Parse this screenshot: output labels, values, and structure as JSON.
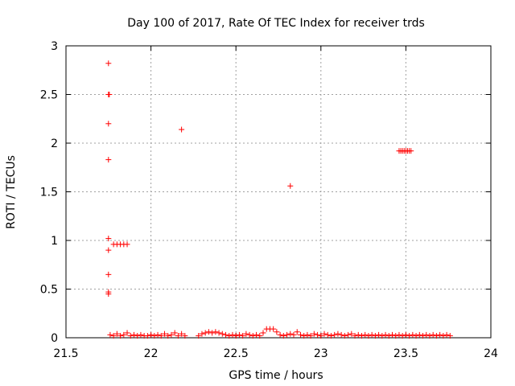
{
  "chart_data": {
    "type": "scatter",
    "title": "Day 100 of 2017, Rate Of TEC Index for receiver trds",
    "xlabel": "GPS time / hours",
    "ylabel": "ROTI / TECUs",
    "xlim": [
      21.5,
      24
    ],
    "ylim": [
      0,
      3
    ],
    "xticks": [
      "21.5",
      "22",
      "22.5",
      "23",
      "23.5",
      "24"
    ],
    "yticks": [
      "0",
      "0.5",
      "1",
      "1.5",
      "2",
      "2.5",
      "3"
    ],
    "grid": true,
    "marker": "+",
    "color": "#ff0000",
    "series": [
      {
        "points": [
          [
            21.75,
            2.82
          ],
          [
            21.75,
            2.5
          ],
          [
            21.755,
            2.5
          ],
          [
            21.75,
            2.2
          ],
          [
            21.75,
            1.83
          ],
          [
            21.75,
            1.02
          ],
          [
            21.75,
            0.9
          ],
          [
            21.75,
            0.65
          ],
          [
            21.75,
            0.47
          ],
          [
            21.75,
            0.45
          ],
          [
            21.78,
            0.96
          ],
          [
            21.8,
            0.96
          ],
          [
            21.82,
            0.96
          ],
          [
            21.84,
            0.96
          ],
          [
            21.86,
            0.96
          ],
          [
            22.18,
            2.14
          ],
          [
            22.82,
            1.56
          ],
          [
            23.46,
            1.92
          ],
          [
            23.47,
            1.92
          ],
          [
            23.48,
            1.92
          ],
          [
            23.49,
            1.92
          ],
          [
            23.5,
            1.92
          ],
          [
            23.51,
            1.92
          ],
          [
            23.52,
            1.92
          ],
          [
            23.53,
            1.92
          ],
          [
            21.76,
            0.03
          ],
          [
            21.78,
            0.02
          ],
          [
            21.8,
            0.04
          ],
          [
            21.82,
            0.02
          ],
          [
            21.84,
            0.03
          ],
          [
            21.86,
            0.05
          ],
          [
            21.88,
            0.02
          ],
          [
            21.9,
            0.03
          ],
          [
            21.92,
            0.02
          ],
          [
            21.94,
            0.03
          ],
          [
            21.96,
            0.02
          ],
          [
            21.98,
            0.02
          ],
          [
            22.0,
            0.03
          ],
          [
            22.02,
            0.02
          ],
          [
            22.04,
            0.03
          ],
          [
            22.06,
            0.02
          ],
          [
            22.08,
            0.04
          ],
          [
            22.1,
            0.02
          ],
          [
            22.12,
            0.03
          ],
          [
            22.14,
            0.05
          ],
          [
            22.16,
            0.02
          ],
          [
            22.18,
            0.04
          ],
          [
            22.2,
            0.02
          ],
          [
            22.28,
            0.02
          ],
          [
            22.3,
            0.04
          ],
          [
            22.32,
            0.05
          ],
          [
            22.34,
            0.06
          ],
          [
            22.36,
            0.05
          ],
          [
            22.38,
            0.06
          ],
          [
            22.4,
            0.05
          ],
          [
            22.42,
            0.04
          ],
          [
            22.44,
            0.03
          ],
          [
            22.46,
            0.02
          ],
          [
            22.48,
            0.03
          ],
          [
            22.5,
            0.02
          ],
          [
            22.52,
            0.03
          ],
          [
            22.54,
            0.02
          ],
          [
            22.56,
            0.04
          ],
          [
            22.58,
            0.03
          ],
          [
            22.6,
            0.02
          ],
          [
            22.62,
            0.03
          ],
          [
            22.64,
            0.02
          ],
          [
            22.66,
            0.05
          ],
          [
            22.68,
            0.09
          ],
          [
            22.7,
            0.09
          ],
          [
            22.72,
            0.09
          ],
          [
            22.74,
            0.06
          ],
          [
            22.76,
            0.03
          ],
          [
            22.78,
            0.02
          ],
          [
            22.8,
            0.03
          ],
          [
            22.82,
            0.04
          ],
          [
            22.84,
            0.03
          ],
          [
            22.86,
            0.06
          ],
          [
            22.88,
            0.03
          ],
          [
            22.9,
            0.02
          ],
          [
            22.92,
            0.03
          ],
          [
            22.94,
            0.02
          ],
          [
            22.96,
            0.04
          ],
          [
            22.98,
            0.03
          ],
          [
            23.0,
            0.02
          ],
          [
            23.02,
            0.04
          ],
          [
            23.04,
            0.03
          ],
          [
            23.06,
            0.02
          ],
          [
            23.08,
            0.03
          ],
          [
            23.1,
            0.04
          ],
          [
            23.12,
            0.03
          ],
          [
            23.14,
            0.02
          ],
          [
            23.16,
            0.03
          ],
          [
            23.18,
            0.04
          ],
          [
            23.2,
            0.02
          ],
          [
            23.22,
            0.03
          ],
          [
            23.24,
            0.02
          ],
          [
            23.26,
            0.03
          ],
          [
            23.28,
            0.02
          ],
          [
            23.3,
            0.03
          ],
          [
            23.32,
            0.02
          ],
          [
            23.34,
            0.03
          ],
          [
            23.36,
            0.02
          ],
          [
            23.38,
            0.03
          ],
          [
            23.4,
            0.02
          ],
          [
            23.42,
            0.03
          ],
          [
            23.44,
            0.02
          ],
          [
            23.46,
            0.03
          ],
          [
            23.48,
            0.02
          ],
          [
            23.5,
            0.03
          ],
          [
            23.52,
            0.02
          ],
          [
            23.54,
            0.03
          ],
          [
            23.56,
            0.02
          ],
          [
            23.58,
            0.03
          ],
          [
            23.6,
            0.02
          ],
          [
            23.62,
            0.03
          ],
          [
            23.64,
            0.02
          ],
          [
            23.66,
            0.03
          ],
          [
            23.68,
            0.02
          ],
          [
            23.7,
            0.03
          ],
          [
            23.72,
            0.02
          ],
          [
            23.74,
            0.03
          ],
          [
            23.76,
            0.02
          ]
        ]
      }
    ]
  }
}
